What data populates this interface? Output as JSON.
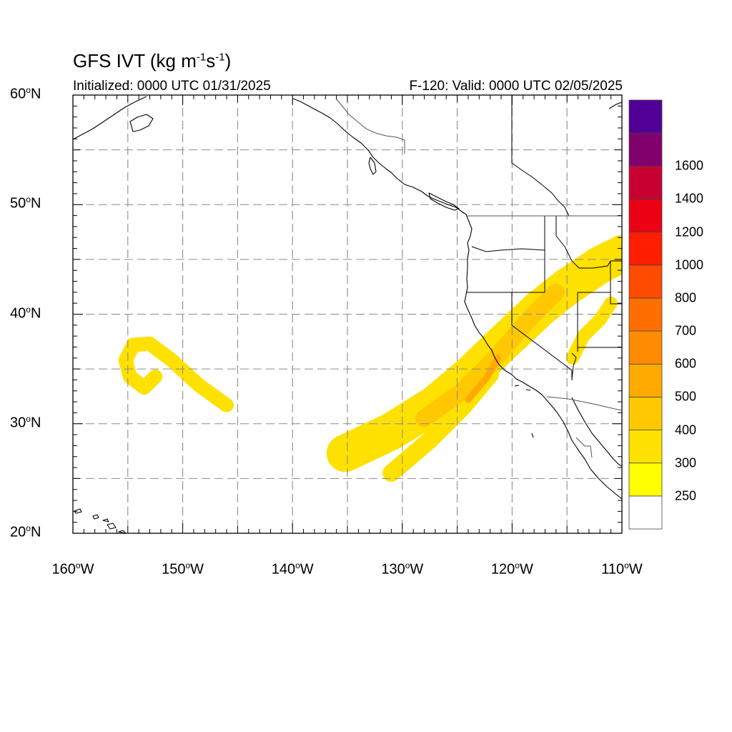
{
  "title": {
    "text": "GFS IVT (kg m",
    "sup1": "-1",
    "mid": "s",
    "sup2": "-1",
    "close": ")"
  },
  "init_text": "Initialized: 0000 UTC 01/31/2025",
  "valid_text": "F-120: Valid: 0000 UTC 02/05/2025",
  "axes": {
    "lon_range": [
      -160,
      -110
    ],
    "lat_range": [
      20,
      60
    ],
    "x_ticks": [
      {
        "num": "160",
        "deg": "o",
        "hem": "W"
      },
      {
        "num": "150",
        "deg": "o",
        "hem": "W"
      },
      {
        "num": "140",
        "deg": "o",
        "hem": "W"
      },
      {
        "num": "130",
        "deg": "o",
        "hem": "W"
      },
      {
        "num": "120",
        "deg": "o",
        "hem": "W"
      },
      {
        "num": "110",
        "deg": "o",
        "hem": "W"
      }
    ],
    "y_ticks": [
      {
        "num": "60",
        "deg": "o",
        "hem": "N"
      },
      {
        "num": "50",
        "deg": "o",
        "hem": "N"
      },
      {
        "num": "40",
        "deg": "o",
        "hem": "N"
      },
      {
        "num": "30",
        "deg": "o",
        "hem": "N"
      },
      {
        "num": "20",
        "deg": "o",
        "hem": "N"
      }
    ],
    "grid": "dashed every 5 degrees"
  },
  "colorbar": {
    "labels": [
      "250",
      "300",
      "400",
      "500",
      "600",
      "700",
      "800",
      "1000",
      "1200",
      "1400",
      "1600"
    ],
    "colors": [
      "#ffffff",
      "#ffff00",
      "#ffe100",
      "#ffc800",
      "#ffaa00",
      "#ff8c00",
      "#ff6e00",
      "#ff4b00",
      "#ff1e00",
      "#eb0014",
      "#c80032",
      "#82006e",
      "#500096"
    ]
  },
  "ivt_features": [
    {
      "name": "main atmospheric river",
      "level": 300,
      "path": [
        [
          -135.2,
          27.3
        ],
        [
          -131,
          29.3
        ],
        [
          -127,
          31.8
        ],
        [
          -123.8,
          34.5
        ],
        [
          -121,
          37.2
        ],
        [
          -117.5,
          40.5
        ],
        [
          -115,
          42.5
        ],
        [
          -112,
          44.5
        ],
        [
          -110,
          45.5
        ]
      ],
      "width_deg": 3.4
    },
    {
      "name": "main AR southern branch",
      "level": 300,
      "path": [
        [
          -131,
          25.5
        ],
        [
          -127.5,
          28.5
        ],
        [
          -124.5,
          31.5
        ],
        [
          -122,
          34.5
        ]
      ],
      "width_deg": 1.6
    },
    {
      "name": "main AR core",
      "level": 400,
      "path": [
        [
          -128,
          30.5
        ],
        [
          -124.5,
          33
        ],
        [
          -121.5,
          36
        ],
        [
          -118.5,
          39.5
        ],
        [
          -116,
          42
        ]
      ],
      "width_deg": 1.6
    },
    {
      "name": "main AR inner core",
      "level": 500,
      "path": [
        [
          -124,
          32.2
        ],
        [
          -122.3,
          34.2
        ],
        [
          -121.3,
          36
        ]
      ],
      "width_deg": 0.6
    },
    {
      "name": "subtropical swirl",
      "level": 300,
      "path": [
        [
          -146,
          31.7
        ],
        [
          -148.5,
          33.5
        ],
        [
          -151,
          35.8
        ],
        [
          -153,
          37.3
        ],
        [
          -154.5,
          37.2
        ],
        [
          -155.2,
          35.8
        ],
        [
          -154.8,
          34.3
        ],
        [
          -153.5,
          33.3
        ],
        [
          -152.5,
          34.3
        ]
      ],
      "width_deg": 1.3
    },
    {
      "name": "interior patches",
      "level": 300,
      "path": [
        [
          -114.5,
          36
        ],
        [
          -113.5,
          38
        ],
        [
          -112,
          39.5
        ],
        [
          -111,
          41
        ]
      ],
      "width_deg": 1.2
    }
  ]
}
